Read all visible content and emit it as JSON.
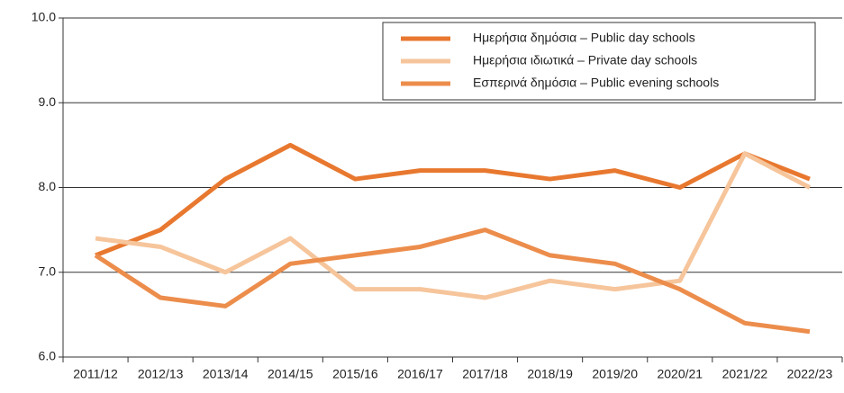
{
  "chart_data": {
    "type": "line",
    "categories": [
      "2011/12",
      "2012/13",
      "2013/14",
      "2014/15",
      "2015/16",
      "2016/17",
      "2017/18",
      "2018/19",
      "2019/20",
      "2020/21",
      "2021/22",
      "2022/23"
    ],
    "series": [
      {
        "name": "Ημερήσια δημόσια – Public day schools",
        "color": "#e8782f",
        "values": [
          7.2,
          7.5,
          8.1,
          8.5,
          8.1,
          8.2,
          8.2,
          8.1,
          8.2,
          8.0,
          8.4,
          8.1
        ]
      },
      {
        "name": "Ημερήσια ιδιωτικά – Private day schools",
        "color": "#f6c59b",
        "values": [
          7.4,
          7.3,
          7.0,
          7.4,
          6.8,
          6.8,
          6.7,
          6.9,
          6.8,
          6.9,
          8.4,
          8.0
        ]
      },
      {
        "name": "Εσπερινά δημόσια – Public evening schools",
        "color": "#ec8d4c",
        "values": [
          7.2,
          6.7,
          6.6,
          7.1,
          7.2,
          7.3,
          7.5,
          7.2,
          7.1,
          6.8,
          6.4,
          6.3
        ]
      }
    ],
    "ylim": [
      6,
      10
    ],
    "yticks": [
      {
        "value": 6,
        "label": "6.0"
      },
      {
        "value": 7,
        "label": "7.0"
      },
      {
        "value": 8,
        "label": "8.0"
      },
      {
        "value": 9,
        "label": "9.0"
      },
      {
        "value": 10,
        "label": "10.0"
      }
    ],
    "grid": true,
    "legend": "top-right"
  }
}
